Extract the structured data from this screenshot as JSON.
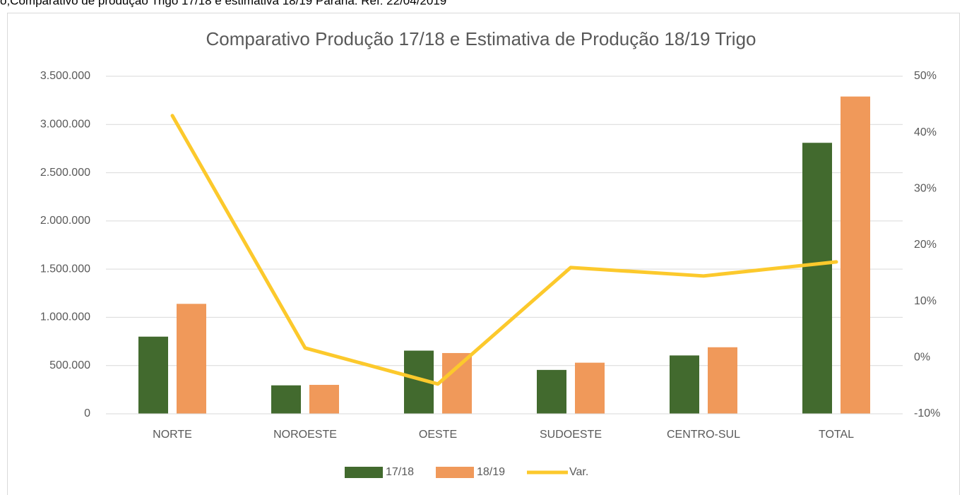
{
  "caption": "o;Comparativo de produção Trigo 17/18 e estimativa 18/19 Paraná. Ref: 22/04/2019",
  "chart_data": {
    "type": "bar_line",
    "title": "Comparativo Produção 17/18  e Estimativa de Produção 18/19 Trigo",
    "categories": [
      "NORTE",
      "NOROESTE",
      "OESTE",
      "SUDOESTE",
      "CENTRO-SUL",
      "TOTAL"
    ],
    "series": [
      {
        "name": "17/18",
        "color": "#426a2e",
        "type": "bar",
        "values": [
          800000,
          295000,
          655000,
          455000,
          605000,
          2810000
        ]
      },
      {
        "name": "18/19",
        "color": "#f0995a",
        "type": "bar",
        "values": [
          1140000,
          300000,
          630000,
          530000,
          690000,
          3290000
        ]
      },
      {
        "name": "Var.",
        "color": "#fcc92c",
        "type": "line",
        "axis": "y2",
        "values": [
          43,
          1.7,
          -4.7,
          16,
          14.5,
          17
        ]
      }
    ],
    "ylim": [
      0,
      3500000
    ],
    "yticks": [
      0,
      {
        "value": 500000,
        "label": "500.000"
      },
      {
        "value": 1000000,
        "label": "1.000.000"
      },
      {
        "value": 1500000,
        "label": "1.500.000"
      },
      {
        "value": 2000000,
        "label": "2.000.000"
      },
      {
        "value": 2500000,
        "label": "2.500.000"
      },
      {
        "value": 3000000,
        "label": "3.000.000"
      },
      {
        "value": 3500000,
        "label": "3.500.000"
      }
    ],
    "y2lim": [
      -10,
      50
    ],
    "y2ticks": [
      {
        "value": -10,
        "label": "-10%"
      },
      {
        "value": 0,
        "label": "0%"
      },
      {
        "value": 10,
        "label": "10%"
      },
      {
        "value": 20,
        "label": "20%"
      },
      {
        "value": 30,
        "label": "30%"
      },
      {
        "value": 40,
        "label": "40%"
      },
      {
        "value": 50,
        "label": "50%"
      }
    ],
    "grid": true,
    "legend": "bottom"
  }
}
